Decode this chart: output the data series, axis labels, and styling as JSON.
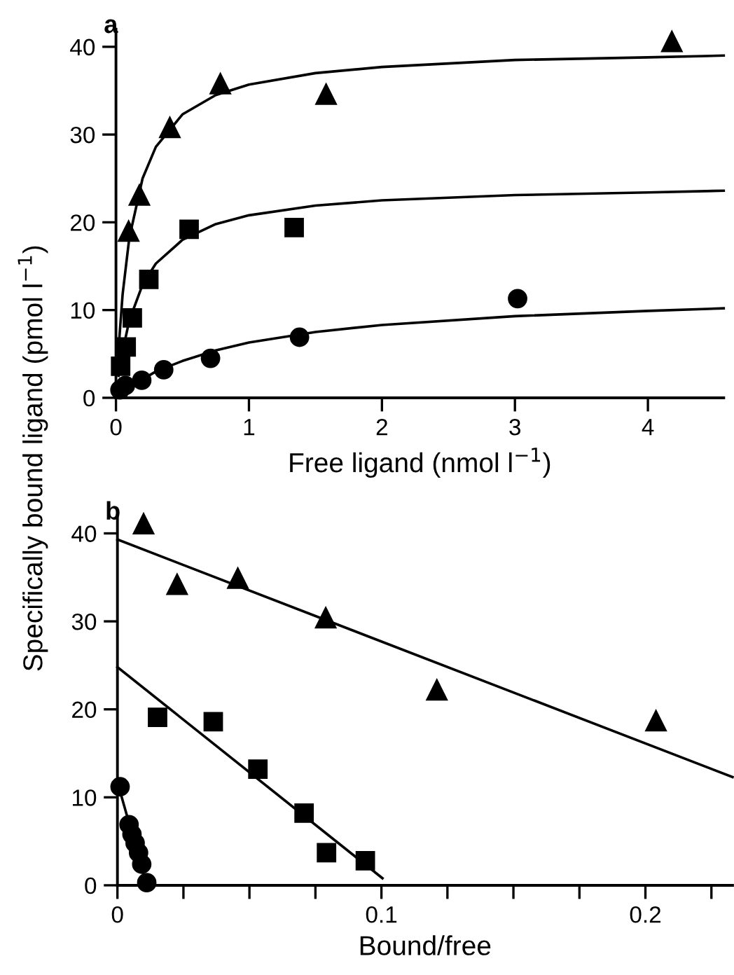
{
  "chart_data": [
    {
      "type": "scatter",
      "title": "a",
      "xlabel": "Free ligand (nmol l$^{−1}$)",
      "ylabel": "Specifically bound ligand (pmol l$^{−1}$)",
      "xlim": [
        0,
        4.57
      ],
      "ylim": [
        0,
        42
      ],
      "xticks": [
        0,
        1,
        2,
        3,
        4
      ],
      "yticks": [
        0,
        10,
        20,
        30,
        40
      ],
      "grid": false,
      "legend": false,
      "series": [
        {
          "type": "scatter",
          "marker": "triangle",
          "color": "#000000",
          "x": [
            0.095,
            0.176,
            0.405,
            0.785,
            1.58,
            4.18
          ],
          "values": [
            19.0,
            23.1,
            30.8,
            35.8,
            34.6,
            40.6
          ]
        },
        {
          "type": "scatter",
          "marker": "square",
          "color": "#000000",
          "x": [
            0.035,
            0.077,
            0.123,
            0.247,
            0.55,
            1.34
          ],
          "values": [
            3.6,
            5.8,
            9.1,
            13.5,
            19.2,
            19.4
          ]
        },
        {
          "type": "scatter",
          "marker": "circle",
          "color": "#000000",
          "x": [
            0.03,
            0.071,
            0.194,
            0.359,
            0.711,
            1.38,
            3.02
          ],
          "values": [
            0.9,
            1.4,
            2.0,
            3.2,
            4.5,
            6.9,
            11.3
          ]
        },
        {
          "type": "line",
          "marker": "none",
          "color": "#000000",
          "x": [
            0.02,
            0.05,
            0.1,
            0.2,
            0.3,
            0.5,
            0.75,
            1,
            1.5,
            2,
            3,
            4,
            4.57
          ],
          "values": [
            5.7,
            11.8,
            18.2,
            25.0,
            28.6,
            32.3,
            34.5,
            35.7,
            37.0,
            37.7,
            38.5,
            38.8,
            39.0
          ]
        },
        {
          "type": "line",
          "marker": "none",
          "color": "#000000",
          "x": [
            0.02,
            0.05,
            0.1,
            0.2,
            0.3,
            0.5,
            0.75,
            1,
            1.5,
            2,
            3,
            4,
            4.57
          ],
          "values": [
            2.5,
            5.3,
            8.8,
            12.9,
            15.3,
            18.0,
            19.8,
            20.8,
            21.9,
            22.5,
            23.1,
            23.4,
            23.6
          ]
        },
        {
          "type": "line",
          "marker": "none",
          "color": "#000000",
          "x": [
            0.02,
            0.05,
            0.1,
            0.2,
            0.3,
            0.5,
            0.75,
            1,
            1.5,
            2,
            3,
            4,
            4.57
          ],
          "values": [
            0.3,
            0.6,
            1.2,
            2.1,
            3.0,
            4.2,
            5.4,
            6.3,
            7.5,
            8.3,
            9.3,
            9.9,
            10.2
          ]
        }
      ]
    },
    {
      "type": "scatter",
      "title": "b",
      "xlabel": "Bound/free",
      "xlim": [
        0,
        0.233
      ],
      "ylim": [
        0,
        42
      ],
      "xticks": [
        0,
        {
          "value": 0.025,
          "label": null
        },
        {
          "value": 0.05,
          "label": null
        },
        {
          "value": 0.075,
          "label": null
        },
        0.1,
        {
          "value": 0.125,
          "label": null
        },
        {
          "value": 0.15,
          "label": null
        },
        {
          "value": 0.175,
          "label": null
        },
        0.2,
        {
          "value": 0.225,
          "label": null
        }
      ],
      "yticks": [
        0,
        10,
        20,
        30,
        40
      ],
      "grid": false,
      "legend": false,
      "series": [
        {
          "type": "scatter",
          "marker": "triangle",
          "color": "#000000",
          "x": [
            0.0099,
            0.0226,
            0.0456,
            0.0789,
            0.121,
            0.204
          ],
          "values": [
            41.1,
            34.2,
            34.9,
            30.4,
            22.2,
            18.7
          ]
        },
        {
          "type": "scatter",
          "marker": "square",
          "color": "#000000",
          "x": [
            0.0152,
            0.0363,
            0.0532,
            0.0707,
            0.0792,
            0.0939
          ],
          "values": [
            19.1,
            18.6,
            13.2,
            8.2,
            3.7,
            2.8
          ]
        },
        {
          "type": "scatter",
          "marker": "circle",
          "color": "#000000",
          "x": [
            0.001,
            0.0044,
            0.0055,
            0.0067,
            0.008,
            0.0092,
            0.0111
          ],
          "values": [
            11.2,
            6.9,
            5.8,
            4.8,
            3.7,
            2.4,
            0.3
          ]
        },
        {
          "type": "line",
          "marker": "none",
          "color": "#000000",
          "x": [
            0,
            0.233
          ],
          "values": [
            39.3,
            12.3
          ]
        },
        {
          "type": "line",
          "marker": "none",
          "color": "#000000",
          "x": [
            0,
            0.1004
          ],
          "values": [
            24.8,
            0.8
          ]
        },
        {
          "type": "line",
          "marker": "none",
          "color": "#000000",
          "x": [
            0.0005,
            0.0111
          ],
          "values": [
            11.2,
            0
          ]
        }
      ]
    }
  ]
}
